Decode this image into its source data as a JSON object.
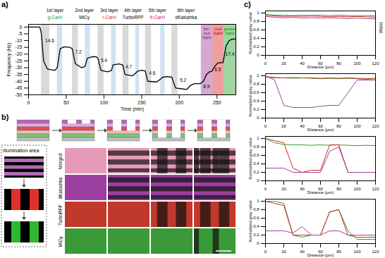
{
  "chart_data": [
    {
      "type": "line",
      "panel": "a)",
      "x_label": "Time (min)",
      "y_label": "Frequency (Hz)",
      "xlim": [
        0,
        275
      ],
      "ylim": [
        -50,
        2
      ],
      "xticks": [
        0,
        50,
        100,
        150,
        200,
        250
      ],
      "yticks": [
        0,
        -5,
        -10,
        -15,
        -20,
        -25,
        -30,
        -35,
        -40,
        -45,
        -50
      ],
      "x": [
        0,
        15,
        17,
        20,
        25,
        35,
        38,
        42,
        47,
        55,
        58,
        62,
        70,
        75,
        78,
        85,
        90,
        92,
        96,
        105,
        110,
        112,
        120,
        125,
        128,
        138,
        142,
        145,
        150,
        155,
        158,
        170,
        175,
        178,
        185,
        190,
        195,
        210,
        215,
        220,
        228,
        232,
        236,
        240,
        243,
        247,
        251,
        255,
        258,
        262,
        266,
        270,
        274
      ],
      "series": [
        {
          "color": "#000000",
          "values": [
            0,
            0,
            -5,
            -25,
            -31,
            -32,
            -30,
            -16,
            -14.6,
            -15,
            -16,
            -27,
            -30,
            -29,
            -23,
            -21.8,
            -22,
            -23,
            -32,
            -33,
            -32,
            -28,
            -27.2,
            -28,
            -35,
            -36,
            -34,
            -32.5,
            -31.9,
            -32.5,
            -40,
            -40.5,
            -38.5,
            -37,
            -36.5,
            -37,
            -45,
            -46,
            -43,
            -41.7,
            -41.7,
            -40,
            -35,
            -33,
            -32.8,
            -29,
            -26.5,
            -26.3,
            -26.3,
            -14,
            -10,
            -9,
            -8.9
          ]
        }
      ],
      "layers": [
        {
          "label": "1st layer",
          "protein": "g-CarH",
          "color": "#1a9c3a",
          "x0": 15,
          "x1": 55
        },
        {
          "label": "2nd layer",
          "protein": "MiCy",
          "color": "#000000",
          "x0": 58,
          "x1": 90
        },
        {
          "label": "3rd layer",
          "protein": "r-CarH",
          "color": "#d62728",
          "x0": 92,
          "x1": 122
        },
        {
          "label": "4th layer",
          "protein": "TurboRFP",
          "color": "#000000",
          "x0": 125,
          "x1": 152
        },
        {
          "label": "5th layer",
          "protein": "fr-CarH",
          "color": "#c2185b",
          "x0": 155,
          "x1": 187
        },
        {
          "label": "6th layer",
          "protein": "dKatushka",
          "color": "#000000",
          "x0": 190,
          "x1": 228
        }
      ],
      "lights": [
        {
          "label": "far-red light",
          "color": "#a0409a",
          "x0": 229,
          "x1": 244
        },
        {
          "label": "red light",
          "color": "#d62728",
          "x0": 244,
          "x1": 259
        },
        {
          "label": "green light",
          "color": "#2ca02c",
          "x0": 259,
          "x1": 275
        }
      ],
      "regions": [
        {
          "x0": 17,
          "x1": 28,
          "color": "#d9d9d9"
        },
        {
          "x0": 38,
          "x1": 45,
          "color": "#cfe2f3"
        },
        {
          "x0": 58,
          "x1": 66,
          "color": "#d9d9d9"
        },
        {
          "x0": 75,
          "x1": 82,
          "color": "#cfe2f3"
        },
        {
          "x0": 92,
          "x1": 100,
          "color": "#d9d9d9"
        },
        {
          "x0": 110,
          "x1": 116,
          "color": "#cfe2f3"
        },
        {
          "x0": 125,
          "x1": 133,
          "color": "#d9d9d9"
        },
        {
          "x0": 142,
          "x1": 147,
          "color": "#cfe2f3"
        },
        {
          "x0": 155,
          "x1": 163,
          "color": "#d9d9d9"
        },
        {
          "x0": 175,
          "x1": 181,
          "color": "#cfe2f3"
        },
        {
          "x0": 190,
          "x1": 198,
          "color": "#d9d9d9"
        }
      ],
      "annotations": [
        {
          "text": "14.6",
          "x": 28,
          "y": -10
        },
        {
          "text": "7.2",
          "x": 66,
          "y": -18.5
        },
        {
          "text": "5.4",
          "x": 100,
          "y": -24.5
        },
        {
          "text": "4.7",
          "x": 133,
          "y": -29.5
        },
        {
          "text": "4.6",
          "x": 164,
          "y": -34
        },
        {
          "text": "5.2",
          "x": 205,
          "y": -39.5
        },
        {
          "text": "8.9",
          "x": 236,
          "y": -44
        },
        {
          "text": "6.5",
          "x": 251,
          "y": -31.5
        },
        {
          "text": "17.4",
          "x": 267,
          "y": -20
        }
      ]
    },
    {
      "type": "line",
      "panel": "c)",
      "side_label": "Initial",
      "x_label": "Distance (µm)",
      "y_label": "Normalized gray value",
      "xlim": [
        0,
        120
      ],
      "ylim": [
        0,
        1.05
      ],
      "xticks": [
        0,
        20,
        40,
        60,
        80,
        100,
        120
      ],
      "yticks": [
        0,
        0.2,
        0.4,
        0.6,
        0.8,
        1
      ],
      "x": [
        0,
        10,
        20,
        30,
        40,
        50,
        60,
        70,
        80,
        90,
        100,
        110,
        120
      ],
      "series": [
        {
          "color": "#2ca02c",
          "values": [
            0.97,
            0.95,
            0.95,
            0.94,
            0.95,
            0.94,
            0.95,
            0.94,
            0.95,
            0.94,
            0.93,
            0.94,
            0.93
          ]
        },
        {
          "color": "#d62728",
          "values": [
            0.95,
            0.93,
            0.92,
            0.93,
            0.92,
            0.93,
            0.92,
            0.91,
            0.92,
            0.91,
            0.92,
            0.91,
            0.9
          ]
        },
        {
          "color": "#a0409a",
          "values": [
            0.92,
            0.9,
            0.89,
            0.9,
            0.88,
            0.89,
            0.88,
            0.89,
            0.88,
            0.87,
            0.88,
            0.87,
            0.86
          ]
        }
      ]
    },
    {
      "type": "line",
      "x_label": "Distance (µm)",
      "y_label": "Normalized gray value",
      "xlim": [
        0,
        120
      ],
      "ylim": [
        0,
        1.05
      ],
      "xticks": [
        0,
        20,
        40,
        60,
        80,
        100,
        120
      ],
      "yticks": [
        0,
        0.2,
        0.4,
        0.6,
        0.8,
        1
      ],
      "x": [
        0,
        10,
        20,
        30,
        40,
        50,
        60,
        70,
        80,
        90,
        100,
        110,
        120
      ],
      "series": [
        {
          "color": "#2ca02c",
          "values": [
            0.97,
            0.95,
            0.95,
            0.94,
            0.95,
            0.94,
            0.93,
            0.94,
            0.93,
            0.94,
            0.93,
            0.92,
            0.93
          ]
        },
        {
          "color": "#d62728",
          "values": [
            0.98,
            0.96,
            0.95,
            0.96,
            0.95,
            0.95,
            0.94,
            0.95,
            0.94,
            0.95,
            0.94,
            0.93,
            0.94
          ]
        },
        {
          "color": "#a0409a",
          "values": [
            1.0,
            0.9,
            0.3,
            0.25,
            0.25,
            0.25,
            0.28,
            0.3,
            0.3,
            0.6,
            0.9,
            0.9,
            0.9
          ]
        }
      ]
    },
    {
      "type": "line",
      "x_label": "Distance (µm)",
      "y_label": "Normalized gray value",
      "xlim": [
        0,
        120
      ],
      "ylim": [
        0,
        1.05
      ],
      "xticks": [
        0,
        20,
        40,
        60,
        80,
        100,
        120
      ],
      "yticks": [
        0,
        0.2,
        0.4,
        0.6,
        0.8,
        1
      ],
      "x": [
        0,
        10,
        20,
        30,
        40,
        50,
        60,
        70,
        80,
        90,
        100,
        110,
        120
      ],
      "series": [
        {
          "color": "#2ca02c",
          "values": [
            1.0,
            0.9,
            0.86,
            0.85,
            0.85,
            0.84,
            0.85,
            0.84,
            0.85,
            0.84,
            0.83,
            0.84,
            0.83
          ]
        },
        {
          "color": "#d62728",
          "values": [
            1.0,
            0.95,
            0.9,
            0.3,
            0.2,
            0.25,
            0.25,
            0.85,
            0.85,
            0.2,
            0.2,
            0.2,
            0.2
          ]
        },
        {
          "color": "#a0409a",
          "values": [
            0.3,
            0.3,
            0.3,
            0.2,
            0.2,
            0.2,
            0.2,
            0.7,
            0.8,
            0.2,
            0.2,
            0.2,
            0.2
          ]
        }
      ]
    },
    {
      "type": "line",
      "x_label": "Distance (µm)",
      "y_label": "Normalized gray value",
      "xlim": [
        0,
        120
      ],
      "ylim": [
        0,
        1.05
      ],
      "xticks": [
        0,
        20,
        40,
        60,
        80,
        100,
        120
      ],
      "yticks": [
        0,
        0.2,
        0.4,
        0.6,
        0.8,
        1
      ],
      "x": [
        0,
        10,
        20,
        30,
        40,
        50,
        60,
        70,
        80,
        90,
        100,
        110,
        120
      ],
      "series": [
        {
          "color": "#2ca02c",
          "values": [
            1.0,
            1.0,
            0.95,
            0.2,
            0.15,
            0.2,
            0.2,
            0.75,
            0.8,
            0.3,
            0.1,
            0.1,
            0.1
          ]
        },
        {
          "color": "#d62728",
          "values": [
            1.0,
            0.95,
            0.9,
            0.2,
            0.2,
            0.2,
            0.2,
            0.75,
            0.8,
            0.2,
            0.15,
            0.15,
            0.15
          ]
        },
        {
          "color": "#a0409a",
          "values": [
            0.3,
            0.3,
            0.3,
            0.25,
            0.4,
            0.2,
            0.2,
            0.3,
            0.3,
            0.2,
            0.2,
            0.2,
            0.2
          ]
        }
      ]
    }
  ],
  "panel_b": {
    "panel": "b)",
    "illumination_label": "Illumination area",
    "rows": [
      {
        "name": "Merged",
        "color": "#e79ab8"
      },
      {
        "name": "dKatushka",
        "color": "#9b3fa0"
      },
      {
        "name": "TurboRFP",
        "color": "#c0392b"
      },
      {
        "name": "MiCy",
        "color": "#3a9a3a"
      }
    ]
  }
}
